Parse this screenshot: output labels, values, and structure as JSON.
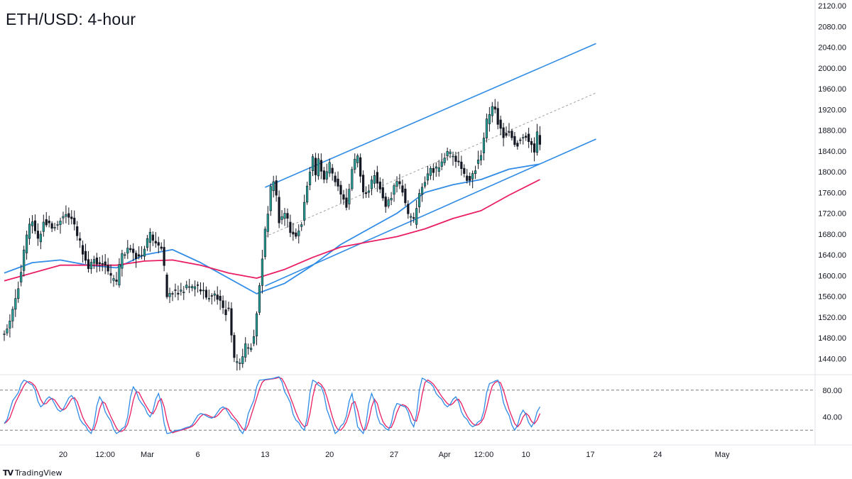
{
  "header": {
    "title": "ETH/USD: 4-hour"
  },
  "branding": {
    "logo_text": "TV",
    "name": "TradingView"
  },
  "chart_data": {
    "type": "candlestick",
    "symbol": "ETH/USD",
    "timeframe": "4-hour",
    "price_axis": {
      "ylim": [
        1420,
        2120
      ],
      "ticks": [
        "2120.00",
        "2080.00",
        "2040.00",
        "2000.00",
        "1960.00",
        "1920.00",
        "1880.00",
        "1840.00",
        "1800.00",
        "1760.00",
        "1720.00",
        "1680.00",
        "1640.00",
        "1600.00",
        "1560.00",
        "1520.00",
        "1480.00",
        "1440.00"
      ]
    },
    "time_axis": {
      "labels": [
        {
          "text": "20",
          "bar": 21
        },
        {
          "text": "12:00",
          "bar": 36
        },
        {
          "text": "Mar",
          "bar": 51
        },
        {
          "text": "6",
          "bar": 69
        },
        {
          "text": "13",
          "bar": 93
        },
        {
          "text": "20",
          "bar": 116
        },
        {
          "text": "27",
          "bar": 139
        },
        {
          "text": "Apr",
          "bar": 157
        },
        {
          "text": "12:00",
          "bar": 171
        },
        {
          "text": "10",
          "bar": 186
        },
        {
          "text": "17",
          "bar": 209
        },
        {
          "text": "24",
          "bar": 233
        },
        {
          "text": "May",
          "bar": 256
        }
      ]
    },
    "anchors": [
      [
        0,
        1495
      ],
      [
        2,
        1515
      ],
      [
        4,
        1560
      ],
      [
        6,
        1605
      ],
      [
        8,
        1670
      ],
      [
        9,
        1690
      ],
      [
        10,
        1700
      ],
      [
        12,
        1665
      ],
      [
        14,
        1710
      ],
      [
        17,
        1700
      ],
      [
        20,
        1705
      ],
      [
        22,
        1715
      ],
      [
        24,
        1705
      ],
      [
        26,
        1670
      ],
      [
        28,
        1650
      ],
      [
        30,
        1620
      ],
      [
        32,
        1640
      ],
      [
        34,
        1625
      ],
      [
        36,
        1615
      ],
      [
        38,
        1590
      ],
      [
        40,
        1580
      ],
      [
        42,
        1640
      ],
      [
        44,
        1660
      ],
      [
        46,
        1645
      ],
      [
        48,
        1640
      ],
      [
        50,
        1650
      ],
      [
        52,
        1672
      ],
      [
        54,
        1660
      ],
      [
        56,
        1650
      ],
      [
        58,
        1565
      ],
      [
        60,
        1575
      ],
      [
        62,
        1570
      ],
      [
        64,
        1575
      ],
      [
        66,
        1570
      ],
      [
        68,
        1575
      ],
      [
        70,
        1570
      ],
      [
        72,
        1560
      ],
      [
        74,
        1570
      ],
      [
        76,
        1565
      ],
      [
        78,
        1540
      ],
      [
        80,
        1530
      ],
      [
        81,
        1480
      ],
      [
        82,
        1430
      ],
      [
        84,
        1425
      ],
      [
        86,
        1460
      ],
      [
        88,
        1470
      ],
      [
        89,
        1490
      ],
      [
        90,
        1530
      ],
      [
        91,
        1585
      ],
      [
        92,
        1640
      ],
      [
        93,
        1690
      ],
      [
        94,
        1720
      ],
      [
        95,
        1760
      ],
      [
        96,
        1780
      ],
      [
        97,
        1745
      ],
      [
        98,
        1700
      ],
      [
        100,
        1715
      ],
      [
        102,
        1690
      ],
      [
        104,
        1680
      ],
      [
        106,
        1710
      ],
      [
        108,
        1780
      ],
      [
        110,
        1820
      ],
      [
        111,
        1790
      ],
      [
        112,
        1820
      ],
      [
        114,
        1780
      ],
      [
        116,
        1810
      ],
      [
        118,
        1790
      ],
      [
        120,
        1760
      ],
      [
        122,
        1740
      ],
      [
        124,
        1800
      ],
      [
        126,
        1825
      ],
      [
        128,
        1755
      ],
      [
        130,
        1760
      ],
      [
        132,
        1800
      ],
      [
        134,
        1770
      ],
      [
        136,
        1740
      ],
      [
        138,
        1760
      ],
      [
        140,
        1780
      ],
      [
        142,
        1760
      ],
      [
        144,
        1710
      ],
      [
        146,
        1705
      ],
      [
        148,
        1760
      ],
      [
        150,
        1790
      ],
      [
        152,
        1810
      ],
      [
        154,
        1800
      ],
      [
        156,
        1815
      ],
      [
        158,
        1830
      ],
      [
        160,
        1825
      ],
      [
        162,
        1820
      ],
      [
        164,
        1800
      ],
      [
        166,
        1790
      ],
      [
        168,
        1810
      ],
      [
        170,
        1830
      ],
      [
        172,
        1890
      ],
      [
        174,
        1920
      ],
      [
        175,
        1915
      ],
      [
        176,
        1900
      ],
      [
        178,
        1875
      ],
      [
        180,
        1880
      ],
      [
        182,
        1860
      ],
      [
        184,
        1860
      ],
      [
        186,
        1865
      ],
      [
        188,
        1850
      ],
      [
        189,
        1835
      ],
      [
        190,
        1870
      ],
      [
        191,
        1855
      ]
    ],
    "series": [
      {
        "name": "MA 100",
        "color": "#2f8be6",
        "points": [
          [
            0,
            1605
          ],
          [
            10,
            1625
          ],
          [
            20,
            1630
          ],
          [
            30,
            1620
          ],
          [
            40,
            1615
          ],
          [
            50,
            1640
          ],
          [
            60,
            1650
          ],
          [
            70,
            1625
          ],
          [
            80,
            1595
          ],
          [
            90,
            1565
          ],
          [
            100,
            1585
          ],
          [
            110,
            1620
          ],
          [
            120,
            1660
          ],
          [
            130,
            1690
          ],
          [
            140,
            1720
          ],
          [
            150,
            1760
          ],
          [
            160,
            1775
          ],
          [
            170,
            1785
          ],
          [
            180,
            1805
          ],
          [
            191,
            1815
          ]
        ]
      },
      {
        "name": "MA 200",
        "color": "#e91e63",
        "points": [
          [
            0,
            1590
          ],
          [
            10,
            1605
          ],
          [
            20,
            1620
          ],
          [
            30,
            1620
          ],
          [
            40,
            1620
          ],
          [
            50,
            1628
          ],
          [
            60,
            1630
          ],
          [
            70,
            1620
          ],
          [
            80,
            1605
          ],
          [
            90,
            1595
          ],
          [
            100,
            1612
          ],
          [
            110,
            1635
          ],
          [
            120,
            1655
          ],
          [
            130,
            1665
          ],
          [
            140,
            1675
          ],
          [
            150,
            1690
          ],
          [
            160,
            1710
          ],
          [
            170,
            1725
          ],
          [
            180,
            1755
          ],
          [
            191,
            1785
          ]
        ]
      }
    ],
    "trendlines": [
      {
        "kind": "channel-upper",
        "color": "#2f8be6",
        "from": [
          93,
          1770
        ],
        "to": [
          211,
          2047
        ]
      },
      {
        "kind": "channel-mid",
        "color": "#9e9e9e",
        "dashed": true,
        "from": [
          93,
          1675
        ],
        "to": [
          211,
          1952
        ]
      },
      {
        "kind": "channel-lower",
        "color": "#2f8be6",
        "from": [
          93,
          1580
        ],
        "to": [
          211,
          1863
        ]
      }
    ],
    "oscillator": {
      "type": "stochastic",
      "ylim": [
        0,
        100
      ],
      "ticks": [
        "80.00",
        "40.00"
      ],
      "levels": [
        80,
        20
      ],
      "k_color": "#2f8be6",
      "d_color": "#e91e63",
      "k": [
        [
          0,
          30
        ],
        [
          4,
          70
        ],
        [
          7,
          95
        ],
        [
          10,
          88
        ],
        [
          13,
          55
        ],
        [
          16,
          70
        ],
        [
          20,
          48
        ],
        [
          24,
          72
        ],
        [
          28,
          30
        ],
        [
          31,
          15
        ],
        [
          34,
          70
        ],
        [
          37,
          40
        ],
        [
          40,
          15
        ],
        [
          43,
          25
        ],
        [
          46,
          85
        ],
        [
          49,
          60
        ],
        [
          52,
          40
        ],
        [
          55,
          75
        ],
        [
          58,
          15
        ],
        [
          62,
          20
        ],
        [
          66,
          25
        ],
        [
          70,
          45
        ],
        [
          74,
          38
        ],
        [
          78,
          55
        ],
        [
          82,
          35
        ],
        [
          85,
          15
        ],
        [
          88,
          55
        ],
        [
          91,
          95
        ],
        [
          95,
          97
        ],
        [
          98,
          100
        ],
        [
          101,
          70
        ],
        [
          104,
          35
        ],
        [
          107,
          20
        ],
        [
          110,
          95
        ],
        [
          113,
          85
        ],
        [
          116,
          40
        ],
        [
          118,
          15
        ],
        [
          121,
          30
        ],
        [
          124,
          75
        ],
        [
          126,
          25
        ],
        [
          128,
          15
        ],
        [
          131,
          75
        ],
        [
          134,
          30
        ],
        [
          137,
          20
        ],
        [
          140,
          60
        ],
        [
          143,
          55
        ],
        [
          146,
          25
        ],
        [
          149,
          98
        ],
        [
          152,
          90
        ],
        [
          155,
          70
        ],
        [
          158,
          55
        ],
        [
          161,
          70
        ],
        [
          164,
          40
        ],
        [
          167,
          25
        ],
        [
          170,
          35
        ],
        [
          173,
          90
        ],
        [
          176,
          95
        ],
        [
          179,
          50
        ],
        [
          182,
          20
        ],
        [
          185,
          50
        ],
        [
          188,
          25
        ],
        [
          191,
          55
        ]
      ]
    }
  }
}
